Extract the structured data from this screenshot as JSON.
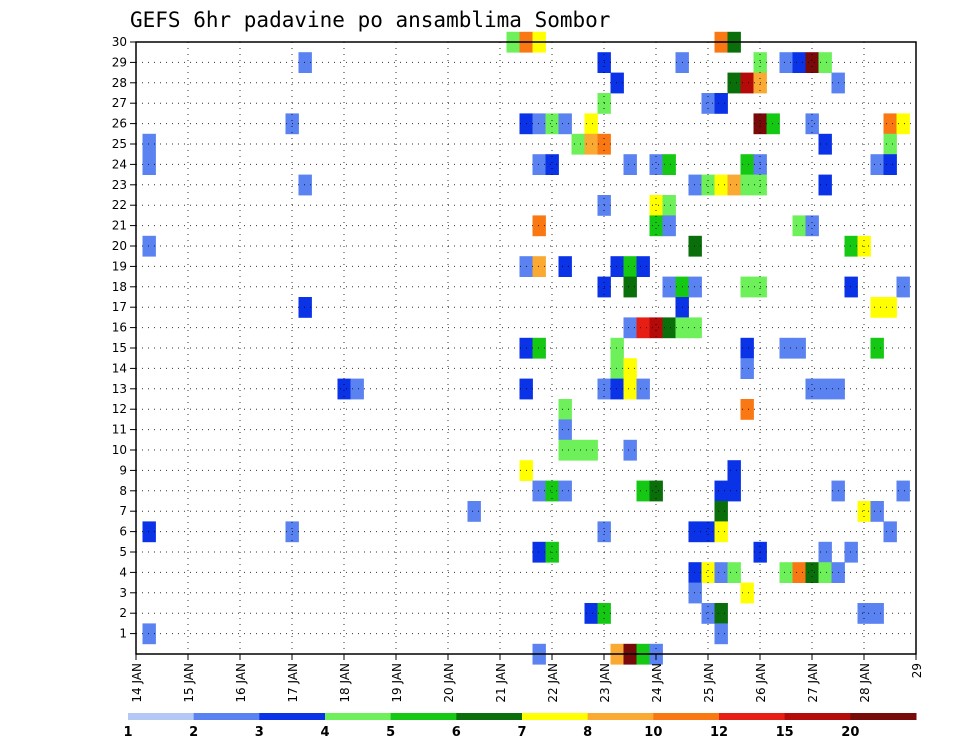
{
  "chart_data": {
    "type": "heatmap",
    "title": "GEFS 6hr padavine po ansamblima Sombor",
    "x_tick_labels": [
      "14 JAN",
      "15 JAN",
      "16 JAN",
      "17 JAN",
      "18 JAN",
      "19 JAN",
      "20 JAN",
      "21 JAN",
      "22 JAN",
      "23 JAN",
      "24 JAN",
      "25 JAN",
      "26 JAN",
      "27 JAN",
      "28 JAN",
      "29"
    ],
    "y_tick_labels": [
      "1",
      "2",
      "3",
      "4",
      "5",
      "6",
      "7",
      "8",
      "9",
      "10",
      "11",
      "12",
      "13",
      "14",
      "15",
      "16",
      "17",
      "18",
      "19",
      "20",
      "21",
      "22",
      "23",
      "24",
      "25",
      "26",
      "27",
      "28",
      "29",
      "30"
    ],
    "x_range_days": [
      14,
      29
    ],
    "y_range": [
      0,
      30
    ],
    "steps_per_day": 4,
    "grid": "dotted",
    "colorbar": {
      "labels": [
        "1",
        "2",
        "3",
        "4",
        "5",
        "6",
        "7",
        "8",
        "10",
        "12",
        "15",
        "20"
      ],
      "colors": [
        "#b4c8f5",
        "#5a82f0",
        "#0a32e6",
        "#6ef05a",
        "#14c814",
        "#0a6e0a",
        "#ffff00",
        "#faaa32",
        "#fa7814",
        "#e61e14",
        "#b40a0a",
        "#780a0a"
      ]
    },
    "cells": [
      [
        30,
        21.25,
        3
      ],
      [
        30,
        21.5,
        8
      ],
      [
        30,
        21.75,
        6
      ],
      [
        30,
        25.25,
        8
      ],
      [
        30,
        25.5,
        5
      ],
      [
        29,
        17.25,
        1
      ],
      [
        29,
        23,
        2
      ],
      [
        29,
        24.5,
        1
      ],
      [
        29,
        26,
        3
      ],
      [
        29,
        26.5,
        1
      ],
      [
        29,
        26.75,
        2
      ],
      [
        29,
        27,
        11
      ],
      [
        29,
        27.25,
        3
      ],
      [
        28,
        23.25,
        2
      ],
      [
        28,
        25.5,
        5
      ],
      [
        28,
        25.75,
        10
      ],
      [
        28,
        26,
        7
      ],
      [
        28,
        27.5,
        1
      ],
      [
        27,
        23,
        3
      ],
      [
        27,
        25,
        1
      ],
      [
        27,
        25.25,
        2
      ],
      [
        26,
        17,
        1
      ],
      [
        26,
        21.5,
        2
      ],
      [
        26,
        21.75,
        1
      ],
      [
        26,
        22,
        3
      ],
      [
        26,
        22.25,
        1
      ],
      [
        26,
        22.75,
        6
      ],
      [
        26,
        26,
        11
      ],
      [
        26,
        26.25,
        4
      ],
      [
        26,
        27,
        1
      ],
      [
        26,
        28.5,
        8
      ],
      [
        26,
        28.75,
        6
      ],
      [
        25,
        14.25,
        1
      ],
      [
        25,
        22.5,
        3
      ],
      [
        25,
        22.75,
        7
      ],
      [
        25,
        23,
        8
      ],
      [
        25,
        27.25,
        2
      ],
      [
        25,
        28.5,
        3
      ],
      [
        24,
        14.25,
        1
      ],
      [
        24,
        21.75,
        1
      ],
      [
        24,
        22,
        2
      ],
      [
        24,
        23.5,
        1
      ],
      [
        24,
        24,
        1
      ],
      [
        24,
        24.25,
        4
      ],
      [
        24,
        25.75,
        4
      ],
      [
        24,
        26,
        1
      ],
      [
        24,
        28.25,
        1
      ],
      [
        24,
        28.5,
        2
      ],
      [
        23,
        17.25,
        1
      ],
      [
        23,
        24.75,
        1
      ],
      [
        23,
        25,
        3
      ],
      [
        23,
        25.25,
        6
      ],
      [
        23,
        25.5,
        7
      ],
      [
        23,
        25.75,
        3
      ],
      [
        23,
        26,
        3
      ],
      [
        23,
        27.25,
        2
      ],
      [
        22,
        23,
        1
      ],
      [
        22,
        24,
        6
      ],
      [
        22,
        24.25,
        3
      ],
      [
        21,
        21.75,
        8
      ],
      [
        21,
        24,
        4
      ],
      [
        21,
        24.25,
        1
      ],
      [
        21,
        26.75,
        3
      ],
      [
        21,
        27,
        1
      ],
      [
        20,
        14.25,
        1
      ],
      [
        20,
        24.75,
        5
      ],
      [
        20,
        27.75,
        4
      ],
      [
        20,
        28,
        6
      ],
      [
        19,
        21.5,
        1
      ],
      [
        19,
        21.75,
        7
      ],
      [
        19,
        22.25,
        2
      ],
      [
        19,
        23.25,
        2
      ],
      [
        19,
        23.5,
        4
      ],
      [
        19,
        23.75,
        2
      ],
      [
        18,
        23,
        2
      ],
      [
        18,
        23.5,
        5
      ],
      [
        18,
        24.25,
        1
      ],
      [
        18,
        24.5,
        4
      ],
      [
        18,
        24.75,
        1
      ],
      [
        18,
        25.75,
        3
      ],
      [
        18,
        26,
        3
      ],
      [
        18,
        27.75,
        2
      ],
      [
        18,
        28.75,
        1
      ],
      [
        17,
        17.25,
        2
      ],
      [
        17,
        24.5,
        2
      ],
      [
        17,
        28.25,
        6
      ],
      [
        17,
        28.5,
        6
      ],
      [
        16,
        23.5,
        1
      ],
      [
        16,
        23.75,
        9
      ],
      [
        16,
        24,
        10
      ],
      [
        16,
        24.25,
        5
      ],
      [
        16,
        24.5,
        3
      ],
      [
        16,
        24.75,
        3
      ],
      [
        15,
        21.5,
        2
      ],
      [
        15,
        21.75,
        4
      ],
      [
        15,
        23.25,
        3
      ],
      [
        15,
        25.75,
        2
      ],
      [
        15,
        26.5,
        1
      ],
      [
        15,
        26.75,
        1
      ],
      [
        15,
        28.25,
        4
      ],
      [
        14,
        23.25,
        3
      ],
      [
        14,
        23.5,
        6
      ],
      [
        14,
        25.75,
        1
      ],
      [
        13,
        18,
        2
      ],
      [
        13,
        18.25,
        1
      ],
      [
        13,
        21.5,
        2
      ],
      [
        13,
        23,
        1
      ],
      [
        13,
        23.25,
        2
      ],
      [
        13,
        23.5,
        6
      ],
      [
        13,
        23.75,
        1
      ],
      [
        13,
        27,
        1
      ],
      [
        13,
        27.25,
        1
      ],
      [
        13,
        27.5,
        1
      ],
      [
        12,
        22.25,
        3
      ],
      [
        12,
        25.75,
        8
      ],
      [
        11,
        22.25,
        1
      ],
      [
        10,
        22.25,
        3
      ],
      [
        10,
        22.5,
        3
      ],
      [
        10,
        22.75,
        3
      ],
      [
        10,
        23.5,
        1
      ],
      [
        9,
        21.5,
        6
      ],
      [
        9,
        25.5,
        2
      ],
      [
        8,
        21.75,
        1
      ],
      [
        8,
        22,
        4
      ],
      [
        8,
        22.25,
        1
      ],
      [
        8,
        23.75,
        4
      ],
      [
        8,
        24,
        5
      ],
      [
        8,
        25.25,
        2
      ],
      [
        8,
        25.5,
        2
      ],
      [
        8,
        27.5,
        1
      ],
      [
        8,
        28.75,
        1
      ],
      [
        7,
        20.5,
        1
      ],
      [
        7,
        25.25,
        5
      ],
      [
        7,
        28,
        6
      ],
      [
        7,
        28.25,
        1
      ],
      [
        6,
        14.25,
        2
      ],
      [
        6,
        17,
        1
      ],
      [
        6,
        23,
        1
      ],
      [
        6,
        24.75,
        2
      ],
      [
        6,
        25,
        2
      ],
      [
        6,
        25.25,
        6
      ],
      [
        6,
        28.5,
        1
      ],
      [
        5,
        21.75,
        2
      ],
      [
        5,
        22,
        4
      ],
      [
        5,
        26,
        2
      ],
      [
        5,
        27.25,
        1
      ],
      [
        5,
        27.75,
        1
      ],
      [
        4,
        24.75,
        2
      ],
      [
        4,
        25,
        6
      ],
      [
        4,
        25.25,
        1
      ],
      [
        4,
        25.5,
        3
      ],
      [
        4,
        26.5,
        3
      ],
      [
        4,
        26.75,
        8
      ],
      [
        4,
        27,
        5
      ],
      [
        4,
        27.25,
        3
      ],
      [
        4,
        27.5,
        1
      ],
      [
        3,
        24.75,
        1
      ],
      [
        3,
        25.75,
        6
      ],
      [
        2,
        22.75,
        2
      ],
      [
        2,
        23,
        4
      ],
      [
        2,
        25,
        1
      ],
      [
        2,
        25.25,
        5
      ],
      [
        2,
        28,
        1
      ],
      [
        2,
        28.25,
        1
      ],
      [
        1,
        14.25,
        1
      ],
      [
        1,
        25.25,
        1
      ],
      [
        0,
        21.75,
        1
      ],
      [
        0,
        23.25,
        7
      ],
      [
        0,
        23.5,
        11
      ],
      [
        0,
        23.75,
        4
      ],
      [
        0,
        24,
        1
      ]
    ]
  }
}
